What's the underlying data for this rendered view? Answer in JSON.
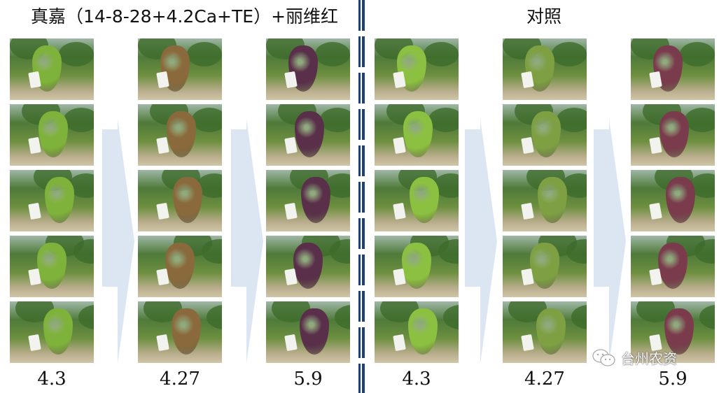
{
  "left_title": "真嘉（14-8-28+4.2Ca+TE）+丽维红",
  "right_title": "对照",
  "columns": [
    {
      "date": "4.3",
      "grape_color": "#7fb23a"
    },
    {
      "date": "4.27",
      "grape_color": "#8a6a3c"
    },
    {
      "date": "5.9",
      "grape_color": "#5a2f4a"
    },
    {
      "date": "4.3",
      "grape_color": "#8cc040"
    },
    {
      "date": "4.27",
      "grape_color": "#7ea043"
    },
    {
      "date": "5.9",
      "grape_color": "#7a3b4c"
    }
  ],
  "accent_colors": {
    "divider": "#1f3f77",
    "arrow": "#dce6f2"
  },
  "watermark": "台州农资"
}
